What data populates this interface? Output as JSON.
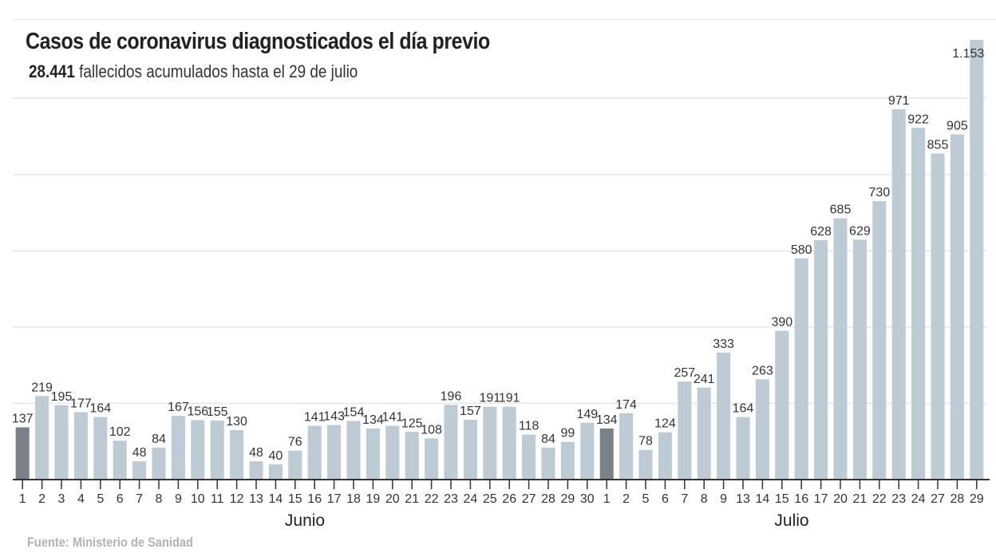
{
  "header": {
    "title": "Casos de coronavirus diagnosticados el día previo",
    "subtitle_bold": "28.441",
    "subtitle_rest": " fallecidos acumulados hasta el 29 de julio"
  },
  "footer": {
    "source": "Fuente: Ministerio de Sanidad"
  },
  "colors": {
    "bar": "#bccbd4",
    "highlight": "#7b8188",
    "grid": "#e6e6e6",
    "axis": "#333333"
  },
  "chart_data": {
    "type": "bar",
    "title": "Casos de coronavirus diagnosticados el día previo",
    "subtitle": "28.441 fallecidos acumulados hasta el 29 de julio",
    "xlabel": "",
    "ylabel": "",
    "ylim": [
      0,
      1000
    ],
    "ygrid": [
      200,
      400,
      600,
      800,
      1000
    ],
    "grid": true,
    "y_tick_labels_shown": false,
    "categories": [
      "1",
      "2",
      "3",
      "4",
      "5",
      "6",
      "7",
      "8",
      "9",
      "10",
      "11",
      "12",
      "13",
      "14",
      "15",
      "16",
      "17",
      "18",
      "19",
      "20",
      "21",
      "22",
      "23",
      "24",
      "25",
      "26",
      "27",
      "28",
      "29",
      "30",
      "1",
      "2",
      "5",
      "6",
      "7",
      "8",
      "9",
      "13",
      "14",
      "15",
      "16",
      "17",
      "20",
      "21",
      "22",
      "23",
      "24",
      "27",
      "28",
      "29"
    ],
    "months": [
      {
        "name": "Junio",
        "start_index": 0,
        "end_index": 29
      },
      {
        "name": "Julio",
        "start_index": 30,
        "end_index": 49
      }
    ],
    "values": [
      137,
      219,
      195,
      177,
      164,
      102,
      48,
      84,
      167,
      156,
      155,
      130,
      48,
      40,
      76,
      141,
      143,
      154,
      134,
      141,
      125,
      108,
      196,
      157,
      191,
      191,
      118,
      84,
      99,
      149,
      134,
      174,
      78,
      124,
      257,
      241,
      333,
      164,
      263,
      390,
      580,
      628,
      685,
      629,
      730,
      971,
      922,
      855,
      905,
      1153
    ],
    "value_labels": [
      "137",
      "219",
      "195",
      "177",
      "164",
      "102",
      "48",
      "84",
      "167",
      "156",
      "155",
      "130",
      "48",
      "40",
      "76",
      "141",
      "143",
      "154",
      "134",
      "141",
      "125",
      "108",
      "196",
      "157",
      "191",
      "191",
      "118",
      "84",
      "99",
      "149",
      "134",
      "174",
      "78",
      "124",
      "257",
      "241",
      "333",
      "164",
      "263",
      "390",
      "580",
      "628",
      "685",
      "629",
      "730",
      "971",
      "922",
      "855",
      "905",
      "1.153"
    ],
    "highlighted_indices": [
      0,
      30
    ],
    "highlight_meaning": "first day of month"
  }
}
